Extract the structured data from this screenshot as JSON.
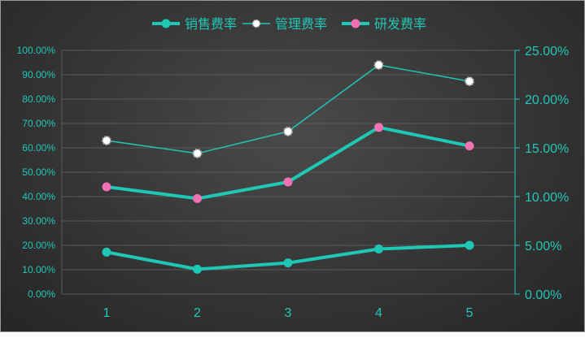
{
  "chart_data": {
    "type": "line",
    "categories": [
      "1",
      "2",
      "3",
      "4",
      "5"
    ],
    "series": [
      {
        "name": "销售费率",
        "axis": "left",
        "values": [
          0.172,
          0.102,
          0.128,
          0.185,
          0.2
        ],
        "color": "#1fc7b5",
        "marker": "#1fc7b5",
        "width": "thick"
      },
      {
        "name": "管理费率",
        "axis": "left",
        "values": [
          0.63,
          0.577,
          0.667,
          0.94,
          0.873
        ],
        "color": "#1fc7b5",
        "marker": "#ffffff",
        "width": "thin"
      },
      {
        "name": "研发费率",
        "axis": "right",
        "values": [
          0.11,
          0.098,
          0.115,
          0.171,
          0.152
        ],
        "color": "#1fc7b5",
        "marker": "#ef72b4",
        "width": "thick"
      }
    ],
    "y_left": {
      "range": [
        0,
        1.0
      ],
      "ticks": [
        "0.00%",
        "10.00%",
        "20.00%",
        "30.00%",
        "40.00%",
        "50.00%",
        "60.00%",
        "70.00%",
        "80.00%",
        "90.00%",
        "100.00%"
      ]
    },
    "y_right": {
      "range": [
        0,
        0.25
      ],
      "ticks": [
        "0.00%",
        "5.00%",
        "10.00%",
        "15.00%",
        "20.00%",
        "25.00%"
      ]
    },
    "grid": true,
    "legend": "top-center",
    "colors": {
      "text": "#22c7b5",
      "grid": "#5a5a5a"
    }
  }
}
